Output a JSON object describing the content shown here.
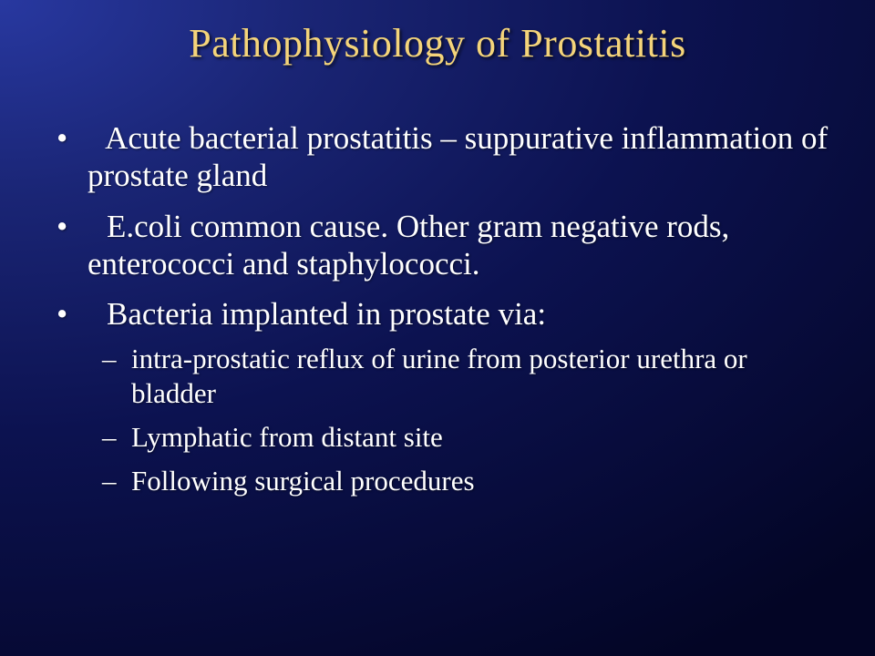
{
  "title_color": "#f4d47a",
  "body_color": "#ffffff",
  "title": "Pathophysiology of Prostatitis",
  "bullets": [
    {
      "text": " Acute bacterial prostatitis – suppurative inflammation of prostate gland"
    },
    {
      "text": " E.coli common cause. Other gram negative rods, enterococci and staphylococci."
    },
    {
      "text": " Bacteria implanted in prostate via:",
      "sub": [
        "intra-prostatic reflux of urine from posterior urethra or bladder",
        " Lymphatic from distant site",
        " Following surgical procedures"
      ]
    }
  ]
}
